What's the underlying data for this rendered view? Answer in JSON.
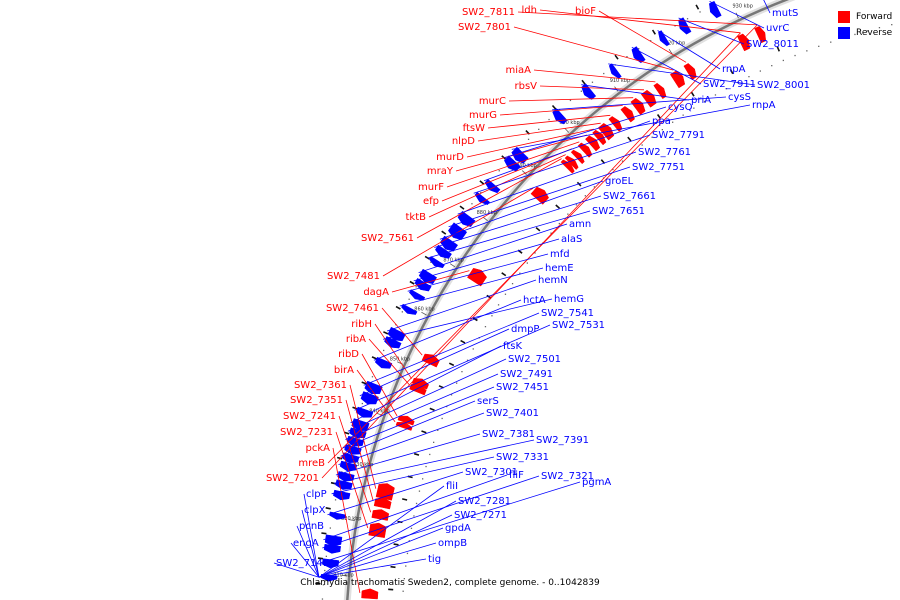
{
  "legend": {
    "forward_label": "Forward",
    "reverse_label": "Reverse",
    "forward_color": "#ff0000",
    "reverse_color": "#0000ff"
  },
  "caption": "Chlamydia trachomatis Sweden2, complete genome. - 0..1042839",
  "ticks": [
    {
      "label": "810 kbp"
    },
    {
      "label": "820 kbp"
    },
    {
      "label": "830 kbp"
    },
    {
      "label": "840 kbp"
    },
    {
      "label": "850 kbp"
    },
    {
      "label": "860 kbp"
    },
    {
      "label": "870 kbp"
    },
    {
      "label": "880 kbp"
    },
    {
      "label": "890 kbp"
    },
    {
      "label": "900 kbp"
    },
    {
      "label": "910 kbp"
    },
    {
      "label": "920 kbp"
    },
    {
      "label": "930 kbp"
    }
  ],
  "forward_genes": [
    "SW2_7811",
    "ldh",
    "bioF",
    "SW2_7801",
    "miaA",
    "rbsV",
    "murC",
    "murG",
    "ftsW",
    "nlpD",
    "murD",
    "mraY",
    "murF",
    "efp",
    "tktB",
    "SW2_7561",
    "SW2_7481",
    "dagA",
    "SW2_7461",
    "ribH",
    "ribA",
    "ribD",
    "birA",
    "SW2_7361",
    "SW2_7351",
    "SW2_7241",
    "SW2_7231",
    "pckA",
    "mreB",
    "SW2_7201"
  ],
  "reverse_genes": [
    "mutS",
    "uvrC",
    "SW2_8011",
    "rnpA",
    "SW2_7911",
    "SW2_8001",
    "priA",
    "cysS",
    "rnpA",
    "cysQ",
    "ppa",
    "SW2_7791",
    "SW2_7761",
    "SW2_7751",
    "groEL",
    "SW2_7661",
    "SW2_7651",
    "amn",
    "alaS",
    "mfd",
    "hemE",
    "hemN",
    "hemG",
    "hctA",
    "SW2_7541",
    "dmpP",
    "SW2_7531",
    "ftsK",
    "SW2_7501",
    "SW2_7491",
    "SW2_7451",
    "serS",
    "SW2_7401",
    "SW2_7381",
    "SW2_7391",
    "SW2_7331",
    "SW2_7301",
    "fliF",
    "SW2_7321",
    "pgmA",
    "fliI",
    "SW2_7281",
    "SW2_7271",
    "gpdA",
    "ompB",
    "tig",
    "clpP",
    "clpX",
    "pcnB",
    "engA",
    "SW2_7141"
  ]
}
